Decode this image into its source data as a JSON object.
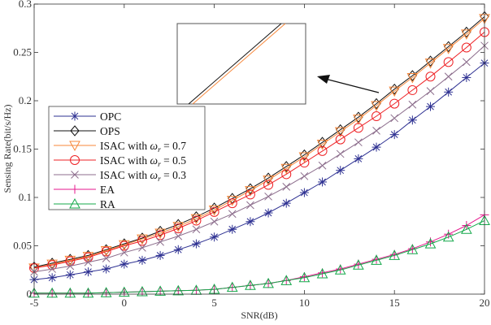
{
  "chart_data": {
    "type": "line",
    "xlabel": "SNR(dB)",
    "ylabel": "Sensing Rate(bit/s/Hz)",
    "xlim": [
      -5,
      20
    ],
    "ylim": [
      0,
      0.3
    ],
    "xticks": [
      -5,
      0,
      5,
      10,
      15,
      20
    ],
    "yticks": [
      0,
      0.05,
      0.1,
      0.15,
      0.2,
      0.25,
      0.3
    ],
    "xtick_labels": [
      "-5",
      "0",
      "5",
      "10",
      "15",
      "20"
    ],
    "ytick_labels": [
      "0",
      "0.05",
      "0.1",
      "0.15",
      "0.2",
      "0.25",
      "0.3"
    ],
    "grid": false,
    "legend_position": "center-left",
    "x": [
      -5,
      -4,
      -3,
      -2,
      -1,
      0,
      1,
      2,
      3,
      4,
      5,
      6,
      7,
      8,
      9,
      10,
      11,
      12,
      13,
      14,
      15,
      16,
      17,
      18,
      19,
      20
    ],
    "series": [
      {
        "name": "OPC",
        "color": "#2e3192",
        "marker": "asterisk",
        "values": [
          0.015,
          0.017,
          0.02,
          0.023,
          0.026,
          0.031,
          0.035,
          0.04,
          0.046,
          0.052,
          0.059,
          0.067,
          0.075,
          0.084,
          0.094,
          0.105,
          0.116,
          0.128,
          0.14,
          0.152,
          0.165,
          0.18,
          0.194,
          0.209,
          0.224,
          0.239
        ]
      },
      {
        "name": "OPS",
        "color": "#111111",
        "marker": "diamond",
        "values": [
          0.028,
          0.032,
          0.036,
          0.04,
          0.046,
          0.052,
          0.058,
          0.065,
          0.072,
          0.08,
          0.089,
          0.099,
          0.109,
          0.12,
          0.132,
          0.144,
          0.157,
          0.17,
          0.183,
          0.197,
          0.212,
          0.226,
          0.241,
          0.256,
          0.271,
          0.287
        ]
      },
      {
        "name": "ISAC with ωr = 0.7",
        "color": "#f7873a",
        "marker": "triangle-down",
        "values": [
          0.027,
          0.031,
          0.035,
          0.039,
          0.045,
          0.051,
          0.057,
          0.063,
          0.07,
          0.078,
          0.087,
          0.097,
          0.107,
          0.118,
          0.13,
          0.142,
          0.155,
          0.168,
          0.181,
          0.195,
          0.21,
          0.224,
          0.239,
          0.254,
          0.269,
          0.285
        ]
      },
      {
        "name": "ISAC with ωr = 0.5",
        "color": "#ee2024",
        "marker": "circle",
        "values": [
          0.027,
          0.03,
          0.034,
          0.038,
          0.044,
          0.05,
          0.055,
          0.061,
          0.068,
          0.076,
          0.085,
          0.094,
          0.103,
          0.113,
          0.124,
          0.136,
          0.148,
          0.16,
          0.172,
          0.184,
          0.197,
          0.211,
          0.225,
          0.24,
          0.255,
          0.271
        ]
      },
      {
        "name": "ISAC with ωr = 0.3",
        "color": "#8c6d8c",
        "marker": "x",
        "values": [
          0.023,
          0.026,
          0.029,
          0.033,
          0.037,
          0.043,
          0.048,
          0.054,
          0.06,
          0.067,
          0.075,
          0.083,
          0.092,
          0.101,
          0.111,
          0.122,
          0.133,
          0.145,
          0.157,
          0.169,
          0.182,
          0.196,
          0.21,
          0.225,
          0.24,
          0.257
        ]
      },
      {
        "name": "EA",
        "color": "#e5178c",
        "marker": "plus",
        "values": [
          0.001,
          0.001,
          0.001,
          0.001,
          0.0015,
          0.002,
          0.0025,
          0.003,
          0.0035,
          0.004,
          0.005,
          0.007,
          0.009,
          0.011,
          0.014,
          0.018,
          0.022,
          0.026,
          0.031,
          0.036,
          0.041,
          0.047,
          0.054,
          0.062,
          0.071,
          0.082
        ]
      },
      {
        "name": "RA",
        "color": "#14a84a",
        "marker": "triangle-up",
        "values": [
          0.001,
          0.001,
          0.001,
          0.001,
          0.0015,
          0.002,
          0.0025,
          0.003,
          0.0035,
          0.004,
          0.005,
          0.007,
          0.009,
          0.011,
          0.014,
          0.017,
          0.021,
          0.025,
          0.03,
          0.035,
          0.04,
          0.046,
          0.052,
          0.059,
          0.067,
          0.076
        ]
      }
    ],
    "annotations": [
      "zoomed inset showing OPS and ISAC ωr = 0.7 curves near SNR 20 dB, with arrow"
    ]
  }
}
